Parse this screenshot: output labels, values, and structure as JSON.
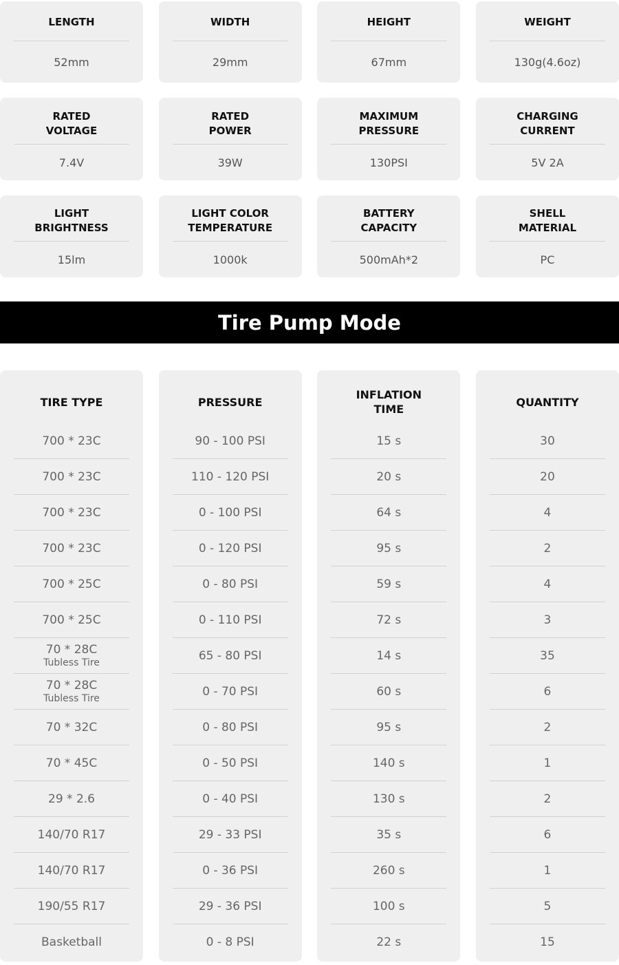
{
  "specs": [
    [
      {
        "label": "LENGTH",
        "value": "52mm"
      },
      {
        "label": "WIDTH",
        "value": "29mm"
      },
      {
        "label": "HEIGHT",
        "value": "67mm"
      },
      {
        "label": "WEIGHT",
        "value": "130g(4.6oz)"
      }
    ],
    [
      {
        "label": "RATED\nVOLTAGE",
        "value": "7.4V"
      },
      {
        "label": "RATED\nPOWER",
        "value": "39W"
      },
      {
        "label": "MAXIMUM\nPRESSURE",
        "value": "130PSI"
      },
      {
        "label": "CHARGING\nCURRENT",
        "value": "5V 2A"
      }
    ],
    [
      {
        "label": "LIGHT\nBRIGHTNESS",
        "value": "15lm"
      },
      {
        "label": "LIGHT COLOR\nTEMPERATURE",
        "value": "1000k"
      },
      {
        "label": "BATTERY\nCAPACITY",
        "value": "500mAh*2"
      },
      {
        "label": "SHELL\nMATERIAL",
        "value": "PC"
      }
    ]
  ],
  "banner": "Tire Pump Mode",
  "table": {
    "headers": [
      "TIRE TYPE",
      "PRESSURE",
      "INFLATION\nTIME",
      "QUANTITY"
    ],
    "rows": [
      {
        "tire": "700 * 23C",
        "sub": "",
        "pressure": "90 - 100 PSI",
        "time": "15 s",
        "qty": "30"
      },
      {
        "tire": "700 * 23C",
        "sub": "",
        "pressure": "110 - 120 PSI",
        "time": "20 s",
        "qty": "20"
      },
      {
        "tire": "700 * 23C",
        "sub": "",
        "pressure": "0 - 100 PSI",
        "time": "64 s",
        "qty": "4"
      },
      {
        "tire": "700 * 23C",
        "sub": "",
        "pressure": "0 - 120 PSI",
        "time": "95 s",
        "qty": "2"
      },
      {
        "tire": "700 * 25C",
        "sub": "",
        "pressure": "0 - 80 PSI",
        "time": "59 s",
        "qty": "4"
      },
      {
        "tire": "700 * 25C",
        "sub": "",
        "pressure": "0 - 110 PSI",
        "time": "72 s",
        "qty": "3"
      },
      {
        "tire": "70 * 28C",
        "sub": "Tubless Tire",
        "pressure": "65 - 80 PSI",
        "time": "14 s",
        "qty": "35"
      },
      {
        "tire": "70 * 28C",
        "sub": "Tubless Tire",
        "pressure": "0 - 70 PSI",
        "time": "60 s",
        "qty": "6"
      },
      {
        "tire": "70 * 32C",
        "sub": "",
        "pressure": "0 - 80 PSI",
        "time": "95 s",
        "qty": "2"
      },
      {
        "tire": "70 * 45C",
        "sub": "",
        "pressure": "0 - 50 PSI",
        "time": "140 s",
        "qty": "1"
      },
      {
        "tire": "29 * 2.6",
        "sub": "",
        "pressure": "0 - 40 PSI",
        "time": "130 s",
        "qty": "2"
      },
      {
        "tire": "140/70 R17",
        "sub": "",
        "pressure": "29 - 33 PSI",
        "time": "35 s",
        "qty": "6"
      },
      {
        "tire": "140/70 R17",
        "sub": "",
        "pressure": "0 - 36 PSI",
        "time": "260 s",
        "qty": "1"
      },
      {
        "tire": "190/55 R17",
        "sub": "",
        "pressure": "29 - 36 PSI",
        "time": "100 s",
        "qty": "5"
      },
      {
        "tire": "Basketball",
        "sub": "",
        "pressure": "0 - 8 PSI",
        "time": "22 s",
        "qty": "15"
      }
    ]
  }
}
